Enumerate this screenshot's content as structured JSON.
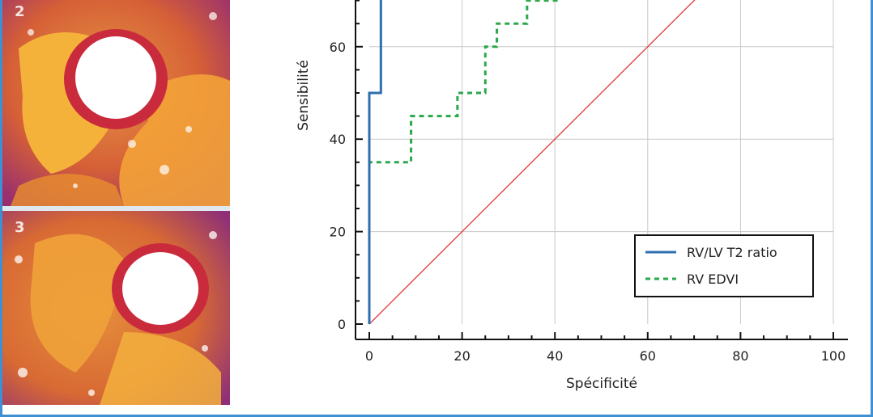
{
  "panels": [
    {
      "label": "2"
    },
    {
      "label": "3"
    }
  ],
  "colors": {
    "frame": "#3f8fd3",
    "diagonal": "#e03a3a",
    "series_1": "#2d6fb0",
    "series_2": "#2aa84a",
    "grid": "#c8c8c8"
  },
  "chart_data": {
    "type": "line",
    "xlabel": "Spécificité",
    "ylabel": "Sensibilité",
    "xlim": [
      0,
      100
    ],
    "ylim": [
      0,
      100
    ],
    "xticks": [
      "0",
      "20",
      "40",
      "60",
      "80",
      "100"
    ],
    "yticks": [
      "0",
      "20",
      "40",
      "60"
    ],
    "grid": true,
    "legend_position": "bottom-right",
    "series": [
      {
        "name": "RV/LV T2 ratio",
        "style": "solid",
        "x": [
          0,
          0,
          0,
          2.5,
          2.5,
          2.5
        ],
        "y": [
          0,
          35,
          50,
          50,
          70,
          100
        ]
      },
      {
        "name": "RV EDVI",
        "style": "dashed",
        "x": [
          0,
          0,
          0,
          9,
          9,
          19,
          19,
          25,
          25,
          27.5,
          27.5,
          34,
          34,
          41
        ],
        "y": [
          0,
          20,
          35,
          35,
          45,
          45,
          50,
          50,
          60,
          60,
          65,
          65,
          70,
          70
        ]
      },
      {
        "name": "",
        "style": "diagonal",
        "x": [
          0,
          100
        ],
        "y": [
          0,
          100
        ]
      }
    ]
  }
}
